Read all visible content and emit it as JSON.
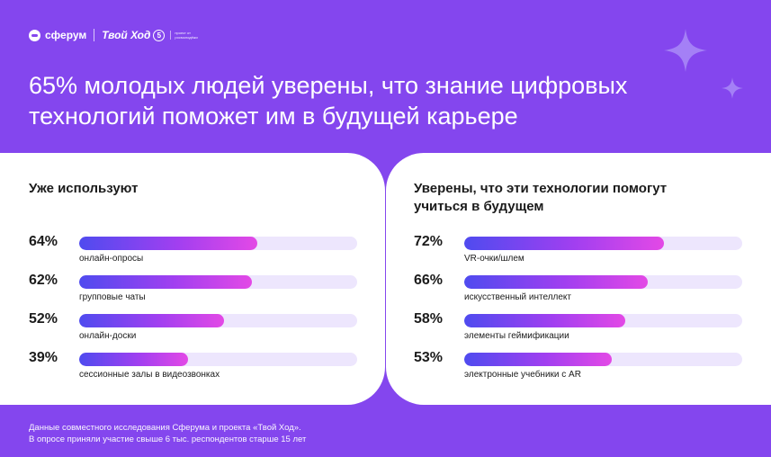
{
  "header": {
    "brand_sferum": "сферум",
    "brand_tvoyhod": "Твой Ход",
    "brand_tvoyhod_badge": "5",
    "brand_tagline": "проект от росмолодёжи"
  },
  "title": "65% молодых людей уверены, что знание цифровых технологий поможет им в будущей карьере",
  "colors": {
    "background": "#8446ee",
    "track": "#ede6fd",
    "gradient_start": "#4f4bef",
    "gradient_end": "#e349e6"
  },
  "chart_data": [
    {
      "type": "bar",
      "orientation": "horizontal",
      "title": "Уже используют",
      "unit": "%",
      "xlim": [
        0,
        100
      ],
      "categories": [
        "онлайн-опросы",
        "групповые чаты",
        "онлайн-доски",
        "сессионные залы в видеозвонках"
      ],
      "values": [
        64,
        62,
        52,
        39
      ],
      "value_labels": [
        "64%",
        "62%",
        "52%",
        "39%"
      ]
    },
    {
      "type": "bar",
      "orientation": "horizontal",
      "title": "Уверены, что эти технологии помогут учиться в будущем",
      "unit": "%",
      "xlim": [
        0,
        100
      ],
      "categories": [
        "VR-очки/шлем",
        "искусственный интеллект",
        "элементы геймификации",
        "электронные учебники с AR"
      ],
      "values": [
        72,
        66,
        58,
        53
      ],
      "value_labels": [
        "72%",
        "66%",
        "58%",
        "53%"
      ]
    }
  ],
  "footer": {
    "line1": "Данные совместного исследования Сферума и проекта «Твой Ход».",
    "line2": "В опросе приняли участие свыше 6 тыс. респондентов старше 15 лет"
  }
}
